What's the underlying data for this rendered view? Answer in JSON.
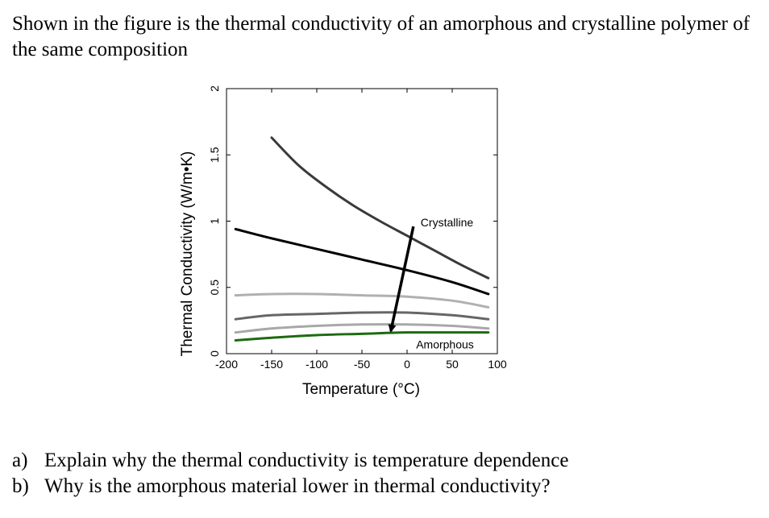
{
  "intro_text": "Shown in the figure is the thermal conductivity of an amorphous and crystalline polymer of the same composition",
  "chart_data": {
    "type": "line",
    "title": "",
    "xlabel": "Temperature (°C)",
    "ylabel": "Thermal Conductivity (W/m•K)",
    "xlim": [
      -200,
      100
    ],
    "ylim": [
      0,
      2
    ],
    "xticks": [
      "-200",
      "-150",
      "-100",
      "-50",
      "0",
      "50",
      "100"
    ],
    "yticks": [
      "0",
      "0.5",
      "1",
      "1.5",
      "2"
    ],
    "grid": false,
    "series": [
      {
        "color": "#3a3a3a",
        "x": [
          -150,
          -120,
          -90,
          -60,
          -30,
          0,
          30,
          60,
          90
        ],
        "y": [
          1.63,
          1.42,
          1.26,
          1.12,
          1.0,
          0.89,
          0.78,
          0.67,
          0.57
        ]
      },
      {
        "color": "#000000",
        "x": [
          -190,
          -150,
          -100,
          -50,
          0,
          50,
          90
        ],
        "y": [
          0.94,
          0.87,
          0.79,
          0.71,
          0.63,
          0.54,
          0.45
        ]
      },
      {
        "color": "#b0b0b0",
        "x": [
          -190,
          -150,
          -100,
          -50,
          0,
          50,
          90
        ],
        "y": [
          0.44,
          0.45,
          0.45,
          0.44,
          0.43,
          0.4,
          0.35
        ]
      },
      {
        "color": "#666666",
        "x": [
          -190,
          -150,
          -100,
          -50,
          0,
          50,
          90
        ],
        "y": [
          0.26,
          0.29,
          0.3,
          0.31,
          0.31,
          0.29,
          0.26
        ]
      },
      {
        "color": "#a8a8a8",
        "x": [
          -190,
          -150,
          -100,
          -50,
          0,
          50,
          90
        ],
        "y": [
          0.16,
          0.19,
          0.21,
          0.22,
          0.22,
          0.21,
          0.19
        ]
      },
      {
        "color": "#1e6a12",
        "x": [
          -190,
          -150,
          -100,
          -50,
          0,
          50,
          90
        ],
        "y": [
          0.1,
          0.12,
          0.14,
          0.15,
          0.16,
          0.16,
          0.16
        ]
      }
    ],
    "annotations": [
      {
        "text": "Crystalline",
        "x": 15,
        "y": 0.96
      },
      {
        "text": "Amorphous",
        "x": 10,
        "y": 0.04
      }
    ],
    "arrow": {
      "from": [
        7,
        0.96
      ],
      "to": [
        -18,
        0.17
      ]
    }
  },
  "questions": [
    {
      "marker": "a)",
      "text": "Explain why the thermal conductivity is temperature dependence"
    },
    {
      "marker": "b)",
      "text": "Why is the amorphous material lower in thermal conductivity?"
    }
  ]
}
